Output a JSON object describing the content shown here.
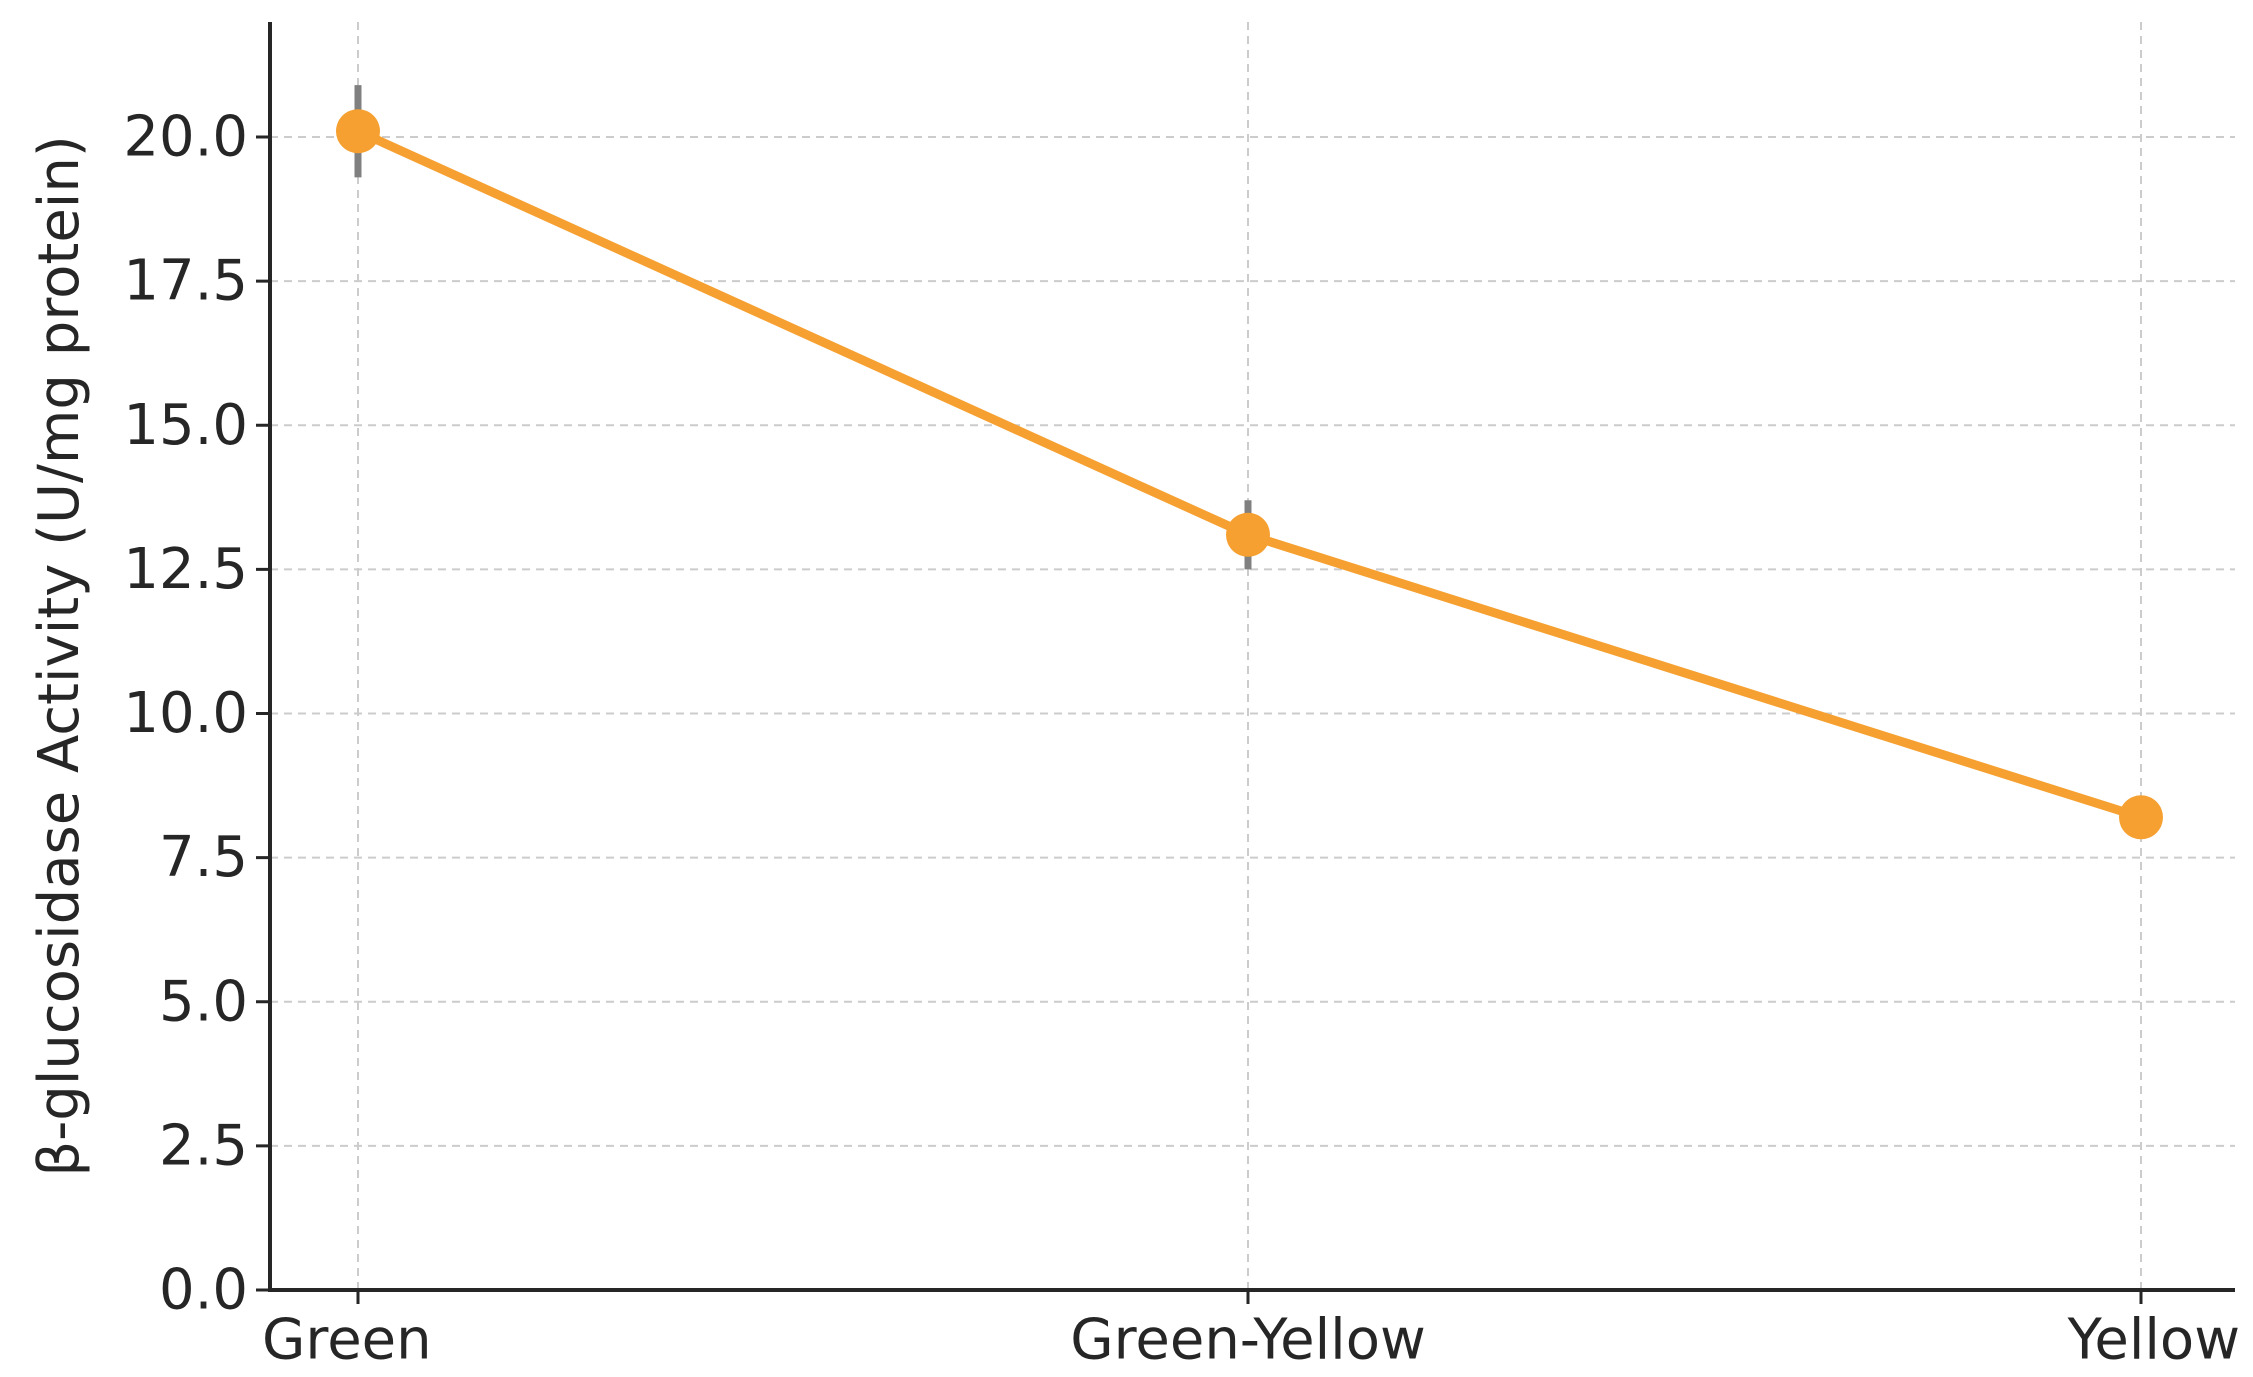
{
  "chart_data": {
    "type": "line",
    "categories": [
      "Green",
      "Green-Yellow",
      "Yellow"
    ],
    "series": [
      {
        "values": [
          20.1,
          13.1,
          8.2
        ],
        "errors": [
          0.8,
          0.6,
          0.3
        ],
        "color": "#f5a030"
      }
    ],
    "xlabel": "",
    "ylabel": "β-glucosidase Activity (U/mg protein)",
    "ylim": [
      0,
      22
    ],
    "yticks": [
      0.0,
      2.5,
      5.0,
      7.5,
      10.0,
      12.5,
      15.0,
      17.5,
      20.0
    ],
    "ytick_labels": [
      "0.0",
      "2.5",
      "5.0",
      "7.5",
      "10.0",
      "12.5",
      "15.0",
      "17.5",
      "20.0"
    ],
    "grid": true,
    "colors": {
      "line": "#f5a030",
      "marker": "#f5a030",
      "error_bar": "#808080",
      "grid": "#cccccc",
      "axis": "#262626"
    }
  }
}
